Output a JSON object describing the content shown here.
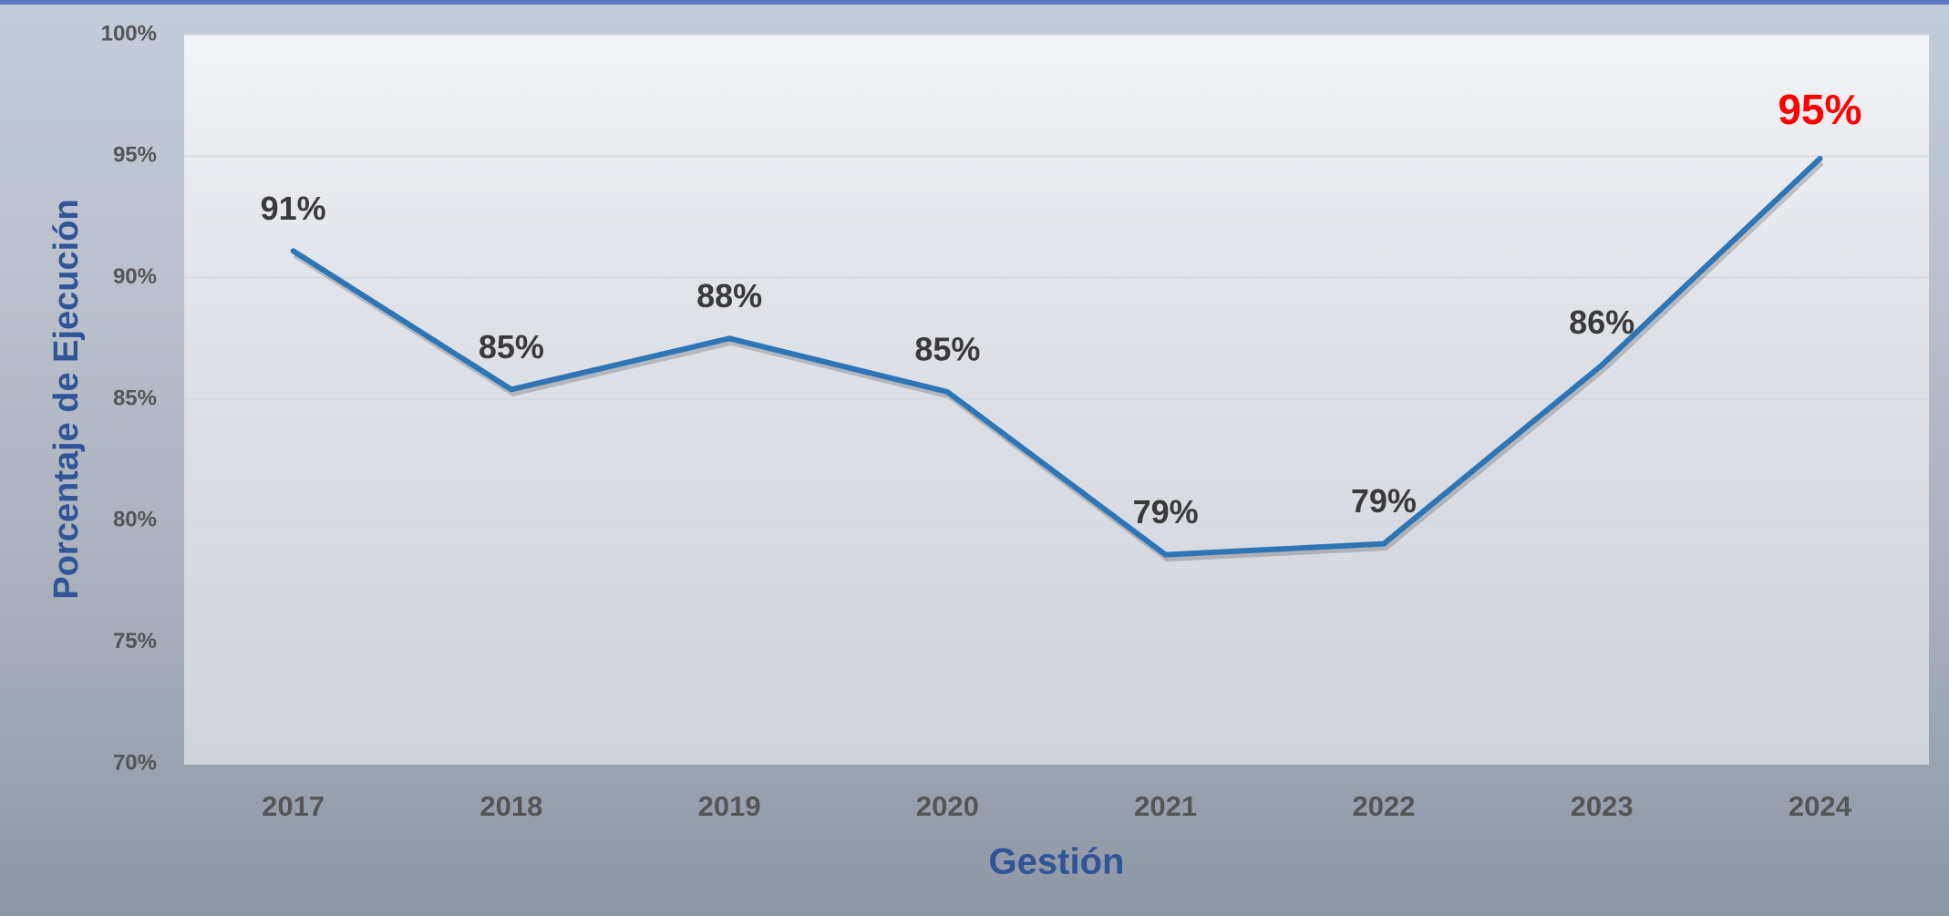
{
  "chart_data": {
    "type": "line",
    "x_label": "Gestión",
    "y_label": "Porcentaje de Ejecución",
    "categories": [
      "2017",
      "2018",
      "2019",
      "2020",
      "2021",
      "2022",
      "2023",
      "2024"
    ],
    "values": [
      91.1,
      85.4,
      87.5,
      85.3,
      78.6,
      79.05,
      86.4,
      94.9
    ],
    "value_labels": [
      "91%",
      "85%",
      "88%",
      "85%",
      "79%",
      "79%",
      "86%",
      "95%"
    ],
    "value_label_colors": [
      "#3a3a3a",
      "#3a3a3a",
      "#3a3a3a",
      "#3a3a3a",
      "#3a3a3a",
      "#3a3a3a",
      "#3a3a3a",
      "#ff0000"
    ],
    "color": "#2e75b6",
    "ylim": [
      70,
      100
    ],
    "yticks": [
      {
        "value": 70,
        "label": "70%"
      },
      {
        "value": 75,
        "label": "75%"
      },
      {
        "value": 80,
        "label": "80%"
      },
      {
        "value": 85,
        "label": "85%"
      },
      {
        "value": 90,
        "label": "90%"
      },
      {
        "value": 95,
        "label": "95%"
      },
      {
        "value": 100,
        "label": "100%"
      }
    ],
    "grid": true
  }
}
